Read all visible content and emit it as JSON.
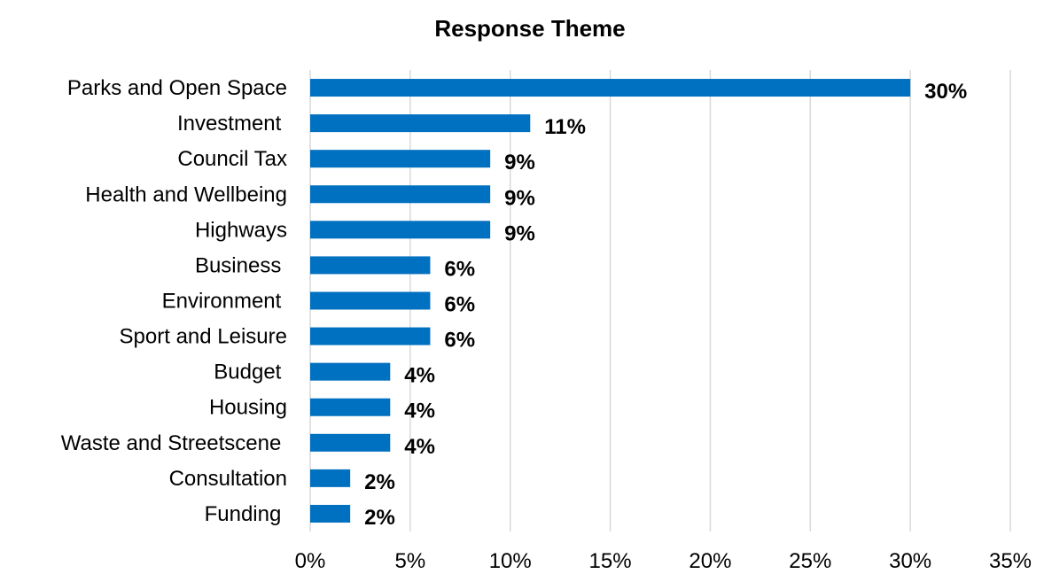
{
  "chart_data": {
    "type": "bar",
    "orientation": "horizontal",
    "title": "Response Theme",
    "xlabel": "",
    "ylabel": "",
    "categories": [
      "Parks and Open Space",
      "Investment ",
      "Council Tax",
      "Health and Wellbeing",
      "Highways",
      "Business ",
      "Environment ",
      "Sport and Leisure",
      "Budget ",
      "Housing",
      "Waste and Streetscene ",
      "Consultation",
      "Funding "
    ],
    "values": [
      30,
      11,
      9,
      9,
      9,
      6,
      6,
      6,
      4,
      4,
      4,
      2,
      2
    ],
    "data_labels": [
      "30%",
      "11%",
      "9%",
      "9%",
      "9%",
      "6%",
      "6%",
      "6%",
      "4%",
      "4%",
      "4%",
      "2%",
      "2%"
    ],
    "xlim": [
      0,
      35
    ],
    "x_ticks": [
      0,
      5,
      10,
      15,
      20,
      25,
      30,
      35
    ],
    "x_tick_labels": [
      "0%",
      "5%",
      "10%",
      "15%",
      "20%",
      "25%",
      "30%",
      "35%"
    ],
    "grid": "vertical",
    "legend": "none",
    "colors": {
      "bar": "#0070C0",
      "grid": "#D9D9D9",
      "text": "#000000"
    }
  }
}
